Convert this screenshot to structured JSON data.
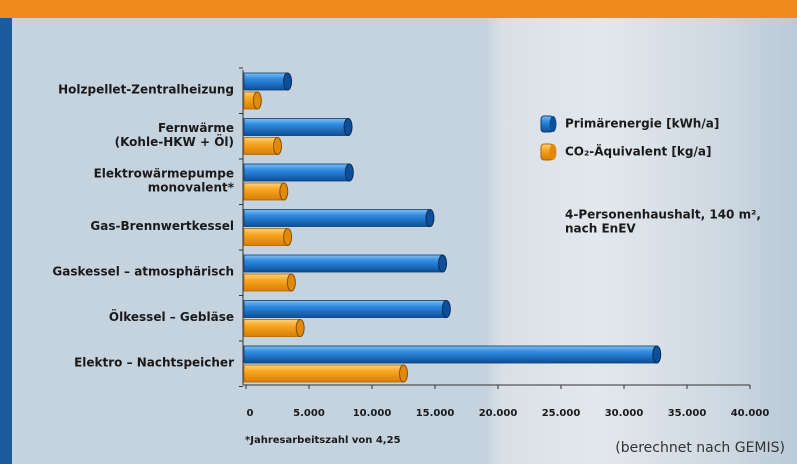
{
  "chart_data": {
    "type": "hbar",
    "categories": [
      [
        "Holzpellet-Zentralheizung"
      ],
      [
        "Fernwärme",
        "(Kohle-HKW + Öl)"
      ],
      [
        "Elektrowärmepumpe",
        "monovalent*"
      ],
      [
        "Gas-Brennwertkessel"
      ],
      [
        "Gaskessel – atmosphärisch"
      ],
      [
        "Ölkessel – Gebläse"
      ],
      [
        "Elektro – Nachtspeicher"
      ]
    ],
    "series": [
      {
        "name": "Primärenergie [kWh/a]",
        "color": "#1e74c6",
        "values": [
          3300,
          8100,
          8200,
          14600,
          15600,
          15900,
          32600
        ]
      },
      {
        "name": "CO₂-Äquivalent [kg/a]",
        "color": "#f6a11c",
        "values": [
          900,
          2500,
          3000,
          3300,
          3600,
          4300,
          12500
        ]
      }
    ],
    "xlim": [
      0,
      40000
    ],
    "xticks": [
      0,
      {
        "value": 5000,
        "label": "5.000"
      },
      {
        "value": 10000,
        "label": "10.000"
      },
      {
        "value": 15000,
        "label": "15.000"
      },
      {
        "value": 20000,
        "label": "20.000"
      },
      {
        "value": 25000,
        "label": "25.000"
      },
      {
        "value": 30000,
        "label": "30.000"
      },
      {
        "value": 35000,
        "label": "35.000"
      },
      {
        "value": 40000,
        "label": "40.000"
      }
    ],
    "annotation": [
      "4-Personenhaushalt, 140 m²,",
      "nach EnEV"
    ],
    "footnote": "*Jahresarbeitszahl von 4,25",
    "source": "(berechnet nach GEMIS)"
  }
}
